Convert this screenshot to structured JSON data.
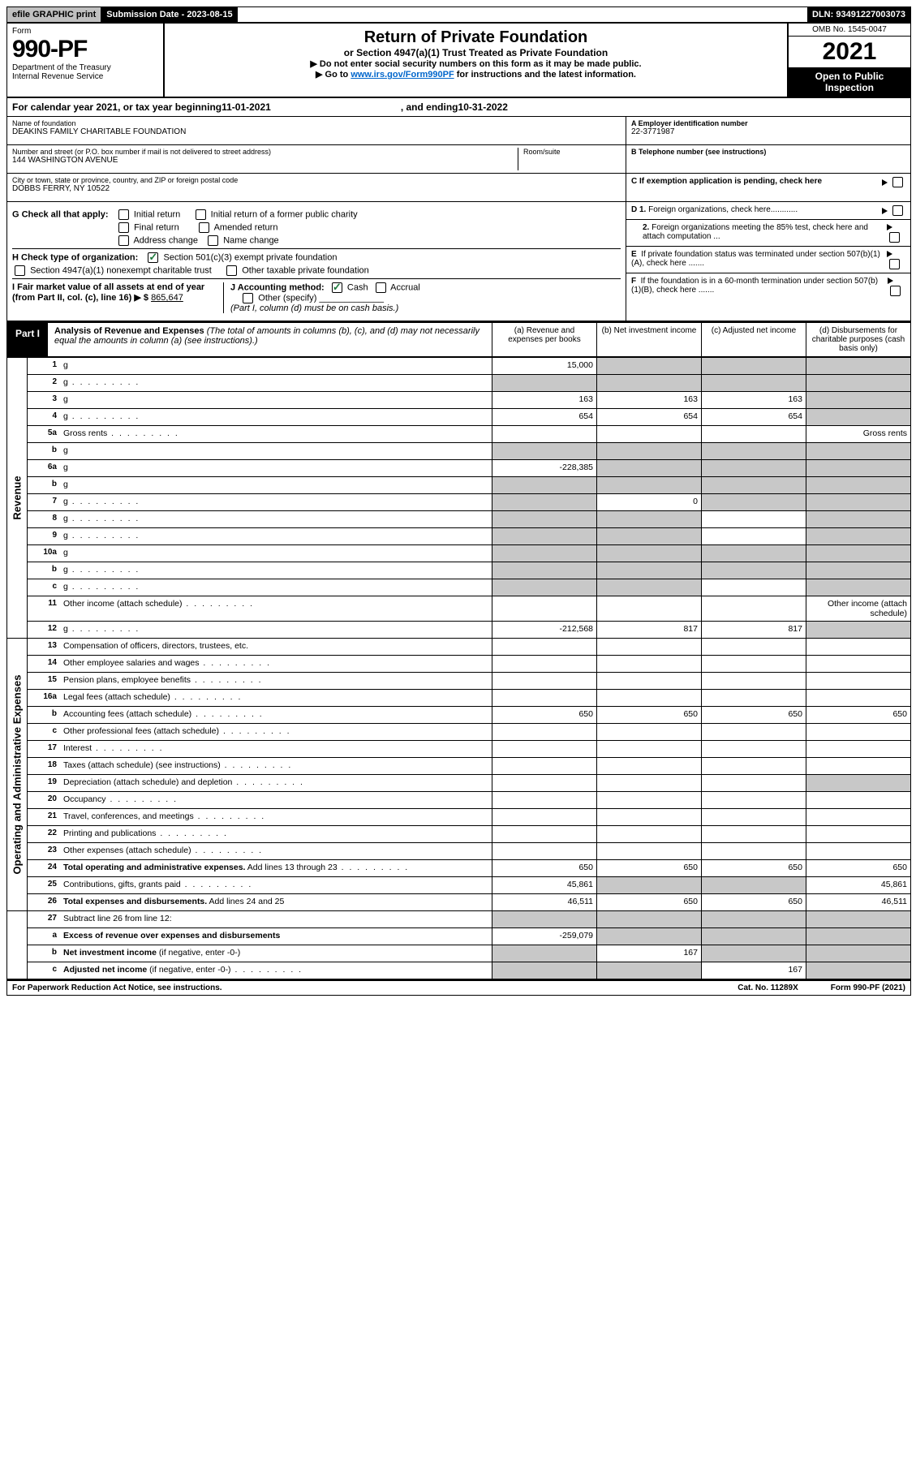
{
  "topbar": {
    "efile": "efile GRAPHIC print",
    "sub_label": "Submission Date - 2023-08-15",
    "dln": "DLN: 93491227003073"
  },
  "header": {
    "form_label": "Form",
    "form_num": "990-PF",
    "dept": "Department of the Treasury",
    "irs": "Internal Revenue Service",
    "title": "Return of Private Foundation",
    "sub": "or Section 4947(a)(1) Trust Treated as Private Foundation",
    "note1": "▶ Do not enter social security numbers on this form as it may be made public.",
    "note2": "▶ Go to ",
    "link": "www.irs.gov/Form990PF",
    "note2b": " for instructions and the latest information.",
    "omb": "OMB No. 1545-0047",
    "year": "2021",
    "inspect": "Open to Public Inspection"
  },
  "calendar": {
    "prefix": "For calendar year 2021, or tax year beginning ",
    "begin": "11-01-2021",
    "mid": ", and ending ",
    "end": "10-31-2022"
  },
  "entity": {
    "name_lbl": "Name of foundation",
    "name": "DEAKINS FAMILY CHARITABLE FOUNDATION",
    "addr_lbl": "Number and street (or P.O. box number if mail is not delivered to street address)",
    "room_lbl": "Room/suite",
    "addr": "144 WASHINGTON AVENUE",
    "city_lbl": "City or town, state or province, country, and ZIP or foreign postal code",
    "city": "DOBBS FERRY, NY  10522",
    "ein_lbl": "A Employer identification number",
    "ein": "22-3771987",
    "phone_lbl": "B Telephone number (see instructions)",
    "c_lbl": "C If exemption application is pending, check here"
  },
  "checks": {
    "g": "G Check all that apply:",
    "initial": "Initial return",
    "initial_pub": "Initial return of a former public charity",
    "final": "Final return",
    "amended": "Amended return",
    "addr_change": "Address change",
    "name_change": "Name change",
    "h": "H Check type of organization:",
    "sec501": "Section 501(c)(3) exempt private foundation",
    "sec4947": "Section 4947(a)(1) nonexempt charitable trust",
    "other_tax": "Other taxable private foundation",
    "i": "I Fair market value of all assets at end of year (from Part II, col. (c), line 16) ▶ $",
    "i_val": "865,647",
    "j": "J Accounting method:",
    "cash": "Cash",
    "accrual": "Accrual",
    "other_spec": "Other (specify)",
    "j_note": "(Part I, column (d) must be on cash basis.)",
    "d1": "D 1. Foreign organizations, check here............",
    "d2": "2. Foreign organizations meeting the 85% test, check here and attach computation ...",
    "e": "E  If private foundation status was terminated under section 507(b)(1)(A), check here .......",
    "f": "F  If the foundation is in a 60-month termination under section 507(b)(1)(B), check here ......."
  },
  "part1": {
    "label": "Part I",
    "title_b": "Analysis of Revenue and Expenses",
    "title_i": " (The total of amounts in columns (b), (c), and (d) may not necessarily equal the amounts in column (a) (see instructions).)",
    "col_a": "(a)   Revenue and expenses per books",
    "col_b": "(b)   Net investment income",
    "col_c": "(c)   Adjusted net income",
    "col_d": "(d)   Disbursements for charitable purposes (cash basis only)"
  },
  "sides": {
    "revenue": "Revenue",
    "op_exp": "Operating and Administrative Expenses"
  },
  "rows": [
    {
      "n": "1",
      "d": "g",
      "a": "15,000",
      "b": "g",
      "c": "g"
    },
    {
      "n": "2",
      "d": "g",
      "dots": 1,
      "a": "g",
      "b": "g",
      "c": "g"
    },
    {
      "n": "3",
      "d": "g",
      "a": "163",
      "b": "163",
      "c": "163"
    },
    {
      "n": "4",
      "d": "g",
      "dots": 1,
      "a": "654",
      "b": "654",
      "c": "654"
    },
    {
      "n": "5a",
      "d": "Gross rents",
      "dots": 1
    },
    {
      "n": "b",
      "d": "g",
      "a": "g",
      "b": "g",
      "c": "g"
    },
    {
      "n": "6a",
      "d": "g",
      "a": "-228,385",
      "b": "g",
      "c": "g"
    },
    {
      "n": "b",
      "d": "g",
      "a": "g",
      "b": "g",
      "c": "g"
    },
    {
      "n": "7",
      "d": "g",
      "dots": 1,
      "a": "g",
      "b": "0",
      "c": "g"
    },
    {
      "n": "8",
      "d": "g",
      "dots": 1,
      "a": "g",
      "b": "g"
    },
    {
      "n": "9",
      "d": "g",
      "dots": 1,
      "a": "g",
      "b": "g"
    },
    {
      "n": "10a",
      "d": "g",
      "a": "g",
      "b": "g",
      "c": "g"
    },
    {
      "n": "b",
      "d": "g",
      "dots": 1,
      "a": "g",
      "b": "g",
      "c": "g"
    },
    {
      "n": "c",
      "d": "g",
      "dots": 1,
      "a": "g",
      "b": "g"
    },
    {
      "n": "11",
      "d": "Other income (attach schedule)",
      "dots": 1,
      "d_": "g"
    },
    {
      "n": "12",
      "d": "g",
      "dots": 1,
      "a": "-212,568",
      "b": "817",
      "c": "817"
    }
  ],
  "exp_rows": [
    {
      "n": "13",
      "d": "Compensation of officers, directors, trustees, etc."
    },
    {
      "n": "14",
      "d": "Other employee salaries and wages",
      "dots": 1
    },
    {
      "n": "15",
      "d": "Pension plans, employee benefits",
      "dots": 1
    },
    {
      "n": "16a",
      "d": "Legal fees (attach schedule)",
      "dots": 1
    },
    {
      "n": "b",
      "d": "Accounting fees (attach schedule)",
      "dots": 1,
      "a": "650",
      "b": "650",
      "c": "650",
      "dd": "650"
    },
    {
      "n": "c",
      "d": "Other professional fees (attach schedule)",
      "dots": 1
    },
    {
      "n": "17",
      "d": "Interest",
      "dots": 1
    },
    {
      "n": "18",
      "d": "Taxes (attach schedule) (see instructions)",
      "dots": 1
    },
    {
      "n": "19",
      "d": "Depreciation (attach schedule) and depletion",
      "dots": 1,
      "dd": "g"
    },
    {
      "n": "20",
      "d": "Occupancy",
      "dots": 1
    },
    {
      "n": "21",
      "d": "Travel, conferences, and meetings",
      "dots": 1
    },
    {
      "n": "22",
      "d": "Printing and publications",
      "dots": 1
    },
    {
      "n": "23",
      "d": "Other expenses (attach schedule)",
      "dots": 1
    },
    {
      "n": "24",
      "d": "<b>Total operating and administrative expenses.</b> Add lines 13 through 23",
      "dots": 1,
      "a": "650",
      "b": "650",
      "c": "650",
      "dd": "650"
    },
    {
      "n": "25",
      "d": "Contributions, gifts, grants paid",
      "dots": 1,
      "a": "45,861",
      "b": "g",
      "c": "g",
      "dd": "45,861"
    },
    {
      "n": "26",
      "d": "<b>Total expenses and disbursements.</b> Add lines 24 and 25",
      "a": "46,511",
      "b": "650",
      "c": "650",
      "dd": "46,511"
    }
  ],
  "net_rows": [
    {
      "n": "27",
      "d": "Subtract line 26 from line 12:",
      "a": "g",
      "b": "g",
      "c": "g",
      "dd": "g"
    },
    {
      "n": "a",
      "d": "<b>Excess of revenue over expenses and disbursements</b>",
      "a": "-259,079",
      "b": "g",
      "c": "g",
      "dd": "g"
    },
    {
      "n": "b",
      "d": "<b>Net investment income</b> (if negative, enter -0-)",
      "a": "g",
      "b": "167",
      "c": "g",
      "dd": "g"
    },
    {
      "n": "c",
      "d": "<b>Adjusted net income</b> (if negative, enter -0-)",
      "dots": 1,
      "a": "g",
      "b": "g",
      "c": "167",
      "dd": "g"
    }
  ],
  "footer": {
    "left": "For Paperwork Reduction Act Notice, see instructions.",
    "mid": "Cat. No. 11289X",
    "right": "Form 990-PF (2021)"
  }
}
